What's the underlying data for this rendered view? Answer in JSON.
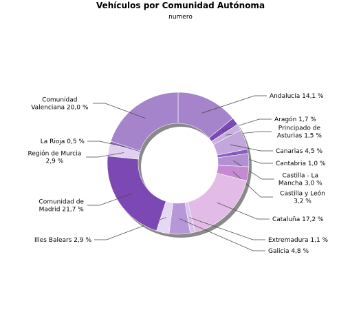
{
  "chart_data": {
    "type": "pie",
    "title": "Vehículos por Comunidad Autónoma",
    "subtitle": "numero",
    "unit": "%",
    "slices": [
      {
        "name": "Andalucía",
        "value": 14.1,
        "label": [
          "Andalucía 14,1 %"
        ],
        "color": "#a684cc"
      },
      {
        "name": "Aragón",
        "value": 1.7,
        "label": [
          "Aragón 1,7 %"
        ],
        "color": "#7a4ab4"
      },
      {
        "name": "Principado de Asturias",
        "value": 1.5,
        "label": [
          "Principado de",
          "Asturias 1,5 %"
        ],
        "color": "#c8b0e0"
      },
      {
        "name": "Canarias",
        "value": 4.5,
        "label": [
          "Canarias 4,5 %"
        ],
        "color": "#c2a6dc"
      },
      {
        "name": "Cantabria",
        "value": 1.0,
        "label": [
          "Cantabria 1,0 %"
        ],
        "color": "#8a5cc0"
      },
      {
        "name": "Castilla - La Mancha",
        "value": 3.0,
        "label": [
          "Castilla - La",
          "Mancha 3,0 %"
        ],
        "color": "#b290d4"
      },
      {
        "name": "Castilla y León",
        "value": 3.2,
        "label": [
          "Castilla y León",
          "3,2 %"
        ],
        "color": "#c68ad4"
      },
      {
        "name": "Cataluña",
        "value": 17.2,
        "label": [
          "Cataluña 17,2 %"
        ],
        "color": "#e2bce6"
      },
      {
        "name": "Extremadura",
        "value": 1.1,
        "label": [
          "Extremadura 1,1 %"
        ],
        "color": "#d6c4ec"
      },
      {
        "name": "Galicia",
        "value": 4.8,
        "label": [
          "Galicia 4,8 %"
        ],
        "color": "#b698d8"
      },
      {
        "name": "Illes Balears",
        "value": 2.9,
        "label": [
          "Illes Balears 2,9 %"
        ],
        "color": "#e4d8f2"
      },
      {
        "name": "Comunidad de Madrid",
        "value": 21.7,
        "label": [
          "Comunidad de",
          "Madrid 21,7 %"
        ],
        "color": "#7c48b4"
      },
      {
        "name": "Región de Murcia",
        "value": 2.9,
        "label": [
          "Región de Murcia",
          "2,9 %"
        ],
        "color": "#e0d0ee"
      },
      {
        "name": "La Rioja",
        "value": 0.5,
        "label": [
          "La Rioja 0,5 %"
        ],
        "color": "#8c66c0"
      },
      {
        "name": "Comunidad Valenciana",
        "value": 20.0,
        "label": [
          "Comunidad",
          "Valenciana 20,0 %"
        ],
        "color": "#a684cc"
      }
    ]
  }
}
